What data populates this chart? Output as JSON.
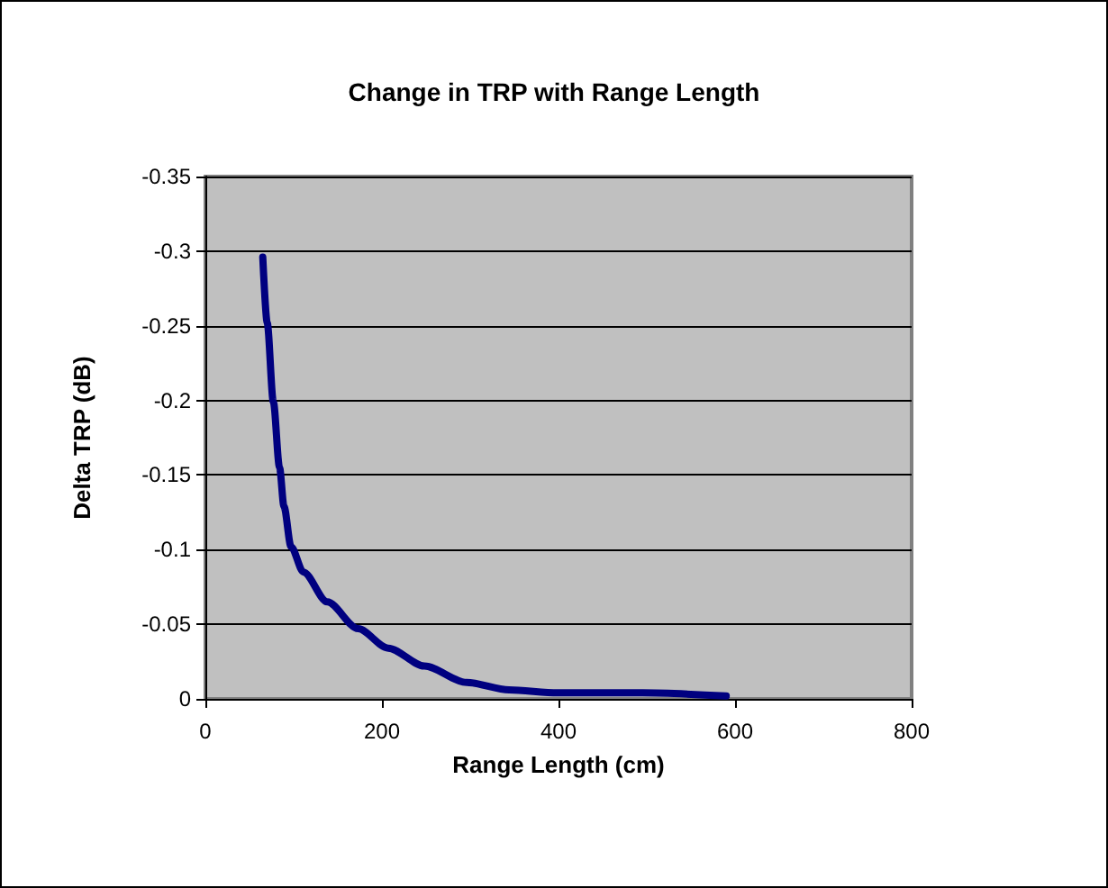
{
  "chart_data": {
    "type": "line",
    "title": "Change in TRP with Range Length",
    "xlabel": "Range Length (cm)",
    "ylabel": "Delta TRP (dB)",
    "x": [
      65,
      70,
      77,
      84,
      89,
      97,
      111,
      138,
      173,
      207,
      248,
      296,
      344,
      399,
      495,
      590
    ],
    "series": [
      {
        "color": "#000080",
        "values": [
          -0.296,
          -0.252,
          -0.199,
          -0.155,
          -0.129,
          -0.102,
          -0.085,
          -0.065,
          -0.047,
          -0.034,
          -0.022,
          -0.011,
          -0.006,
          -0.004,
          -0.004,
          -0.002
        ]
      }
    ],
    "xlim": [
      0,
      800
    ],
    "xticks": [
      0,
      200,
      400,
      600,
      800
    ],
    "ylim": [
      0,
      -0.35
    ],
    "yticks": [
      0,
      -0.05,
      -0.1,
      -0.15,
      -0.2,
      -0.25,
      -0.3,
      -0.35
    ],
    "grid": "y",
    "marker": "none",
    "line_style": "solid"
  }
}
